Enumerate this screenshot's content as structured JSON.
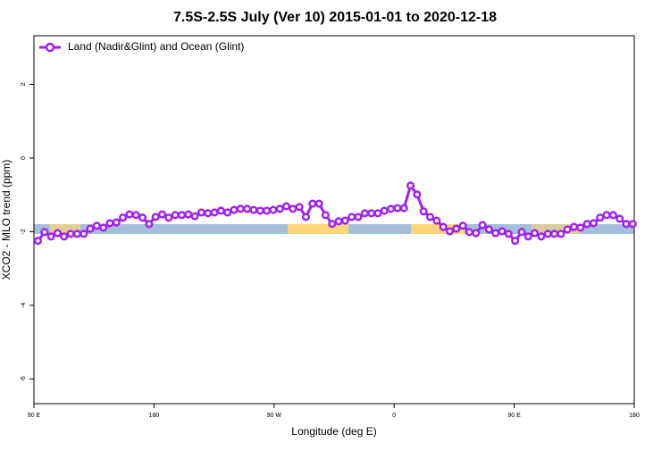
{
  "chart_data": {
    "type": "line",
    "title": "7.5S-2.5S July (Ver 10)   2015-01-01 to 2020-12-18",
    "x_label": "Longitude (deg E)",
    "y_label": "XCO2 - MLO trend (ppm)",
    "xlim": [
      90,
      540
    ],
    "ylim": [
      -6.67,
      3.32
    ],
    "xticks": [
      {
        "value": 90,
        "label": "90 E"
      },
      180,
      {
        "value": 270,
        "label": "90 W"
      },
      {
        "value": 360,
        "label": "0"
      },
      {
        "value": 450,
        "label": "90 E"
      },
      {
        "value": 540,
        "label": "180"
      }
    ],
    "yticks": [
      2,
      0,
      -2,
      -4,
      -6
    ],
    "legend": "top-left",
    "x": [
      93,
      97.9,
      102.8,
      107.7,
      112.6,
      117.5,
      122.4,
      127.3,
      132.2,
      137.1,
      142,
      146.9,
      151.8,
      156.7,
      161.6,
      166.5,
      171.4,
      176.3,
      181.2,
      186.1,
      191,
      195.9,
      200.8,
      205.7,
      210.6,
      215.5,
      220.4,
      225.3,
      230.2,
      235.1,
      240,
      244.9,
      249.8,
      254.7,
      259.6,
      264.5,
      269.4,
      274.3,
      279.2,
      284.1,
      289,
      293.9,
      298.8,
      303.7,
      308.6,
      313.5,
      318.4,
      323.3,
      328.2,
      333.1,
      338,
      342.9,
      347.8,
      352.7,
      357.6,
      362.5,
      367.4,
      372.3,
      377.2,
      382.1,
      387,
      391.9,
      396.8,
      401.7,
      406.6,
      411.5,
      416.4,
      421.3,
      426.2,
      431.1,
      436,
      440.9,
      445.8,
      450.7,
      455.6,
      460.5,
      465.4,
      470.3,
      475.2,
      480.1,
      485,
      489.9,
      494.8,
      499.7,
      504.6,
      509.5,
      514.4,
      519.3,
      524.2,
      529.1,
      534,
      538.9
    ],
    "series": [
      {
        "name": "Land (Nadir&Glint) and Ocean (Glint)",
        "color": "#a020f0",
        "values": [
          -2.25,
          -2.01,
          -2.13,
          -2.04,
          -2.13,
          -2.06,
          -2.06,
          -2.06,
          -1.92,
          -1.84,
          -1.89,
          -1.77,
          -1.75,
          -1.62,
          -1.53,
          -1.55,
          -1.62,
          -1.79,
          -1.6,
          -1.53,
          -1.62,
          -1.55,
          -1.55,
          -1.53,
          -1.58,
          -1.48,
          -1.5,
          -1.48,
          -1.43,
          -1.48,
          -1.41,
          -1.38,
          -1.38,
          -1.41,
          -1.43,
          -1.43,
          -1.41,
          -1.38,
          -1.31,
          -1.38,
          -1.33,
          -1.6,
          -1.24,
          -1.24,
          -1.55,
          -1.79,
          -1.72,
          -1.7,
          -1.6,
          -1.6,
          -1.5,
          -1.5,
          -1.5,
          -1.43,
          -1.38,
          -1.36,
          -1.36,
          -0.75,
          -0.99,
          -1.45,
          -1.6,
          -1.7,
          -1.87,
          -1.99,
          -1.92,
          -1.84,
          -2.01,
          -2.04,
          -1.82,
          -1.94,
          -2.04,
          -1.99,
          -2.06,
          -2.25,
          -2.01,
          -2.13,
          -2.04,
          -2.13,
          -2.06,
          -2.06,
          -2.06,
          -1.94,
          -1.87,
          -1.89,
          -1.79,
          -1.77,
          -1.62,
          -1.55,
          -1.55,
          -1.65,
          -1.79,
          -1.79
        ]
      }
    ]
  }
}
